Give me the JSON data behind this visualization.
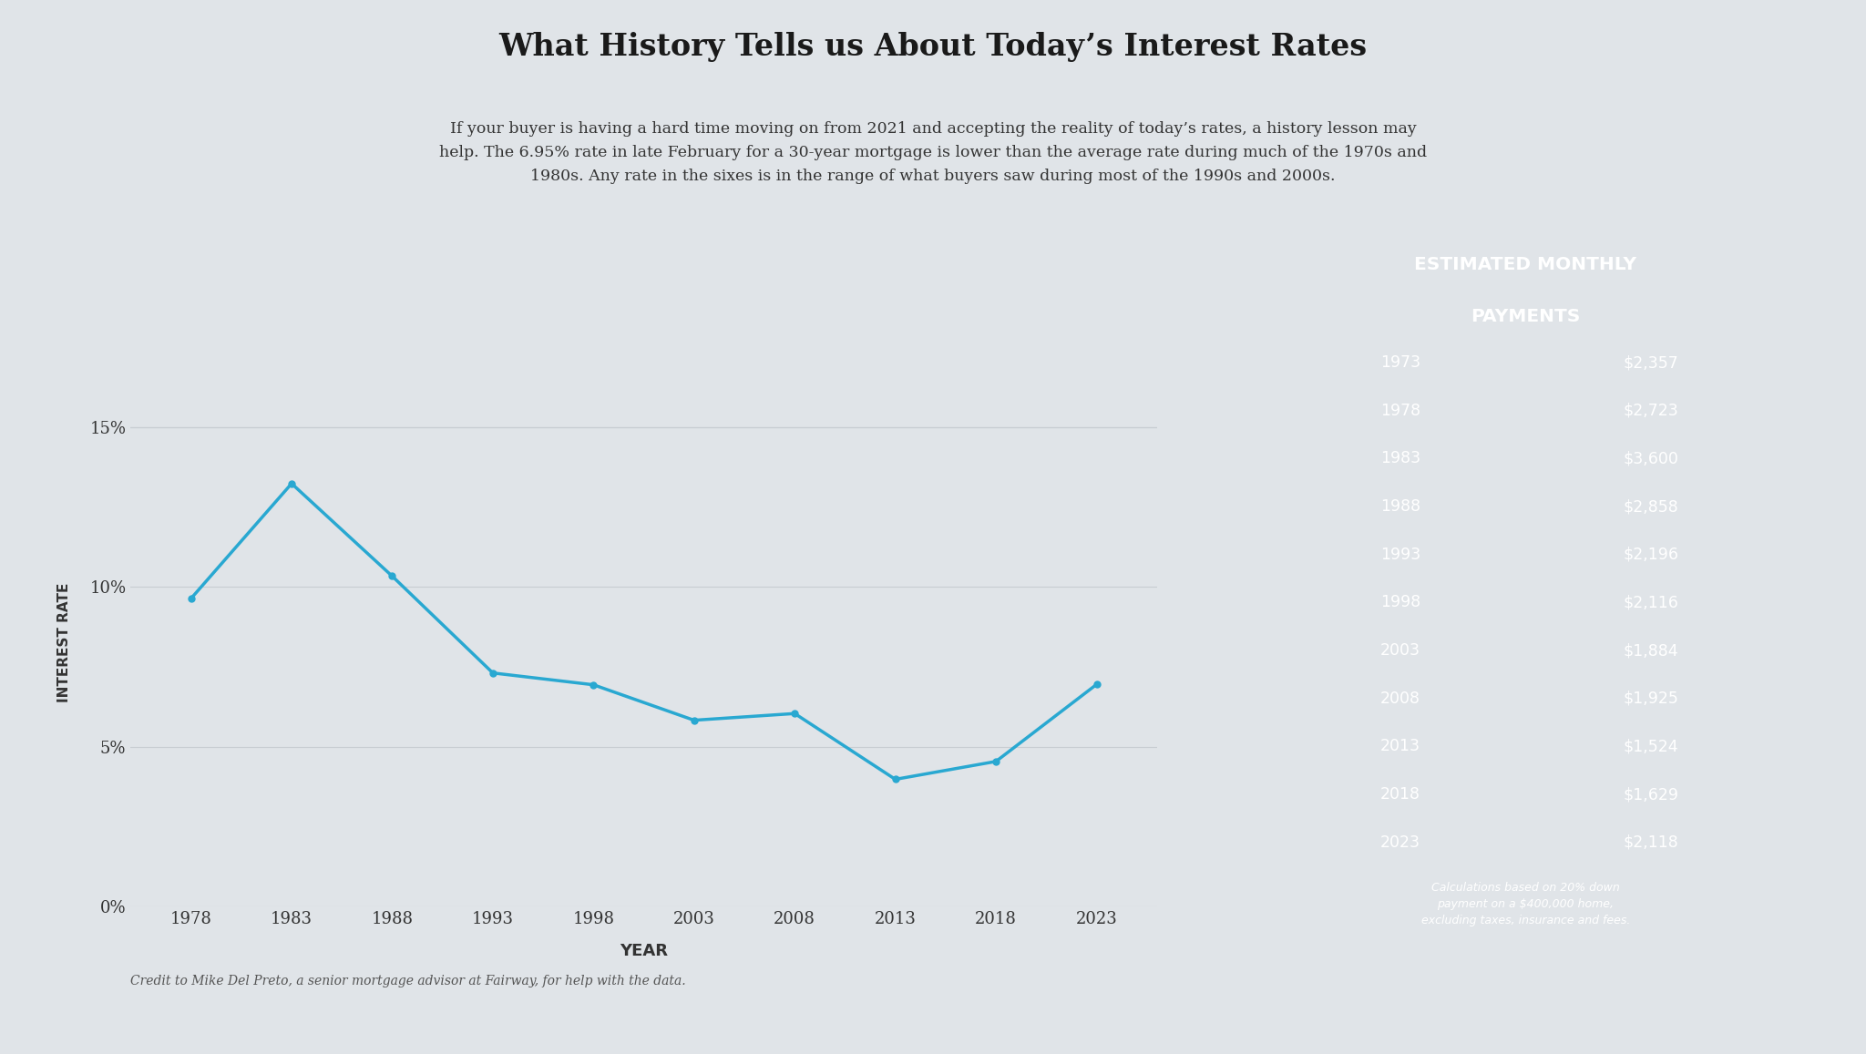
{
  "title": "What History Tells us About Today’s Interest Rates",
  "subtitle_lines": [
    "If your buyer is having a hard time moving on from 2021 and accepting the reality of today’s rates, a history lesson may",
    "help. The 6.95% rate in late February for a 30-year mortgage is lower than the average rate during much of the 1970s and",
    "1980s. Any rate in the sixes is in the range of what buyers saw during most of the 1990s and 2000s."
  ],
  "credit": "Credit to Mike Del Preto, a senior mortgage advisor at Fairway, for help with the data.",
  "years": [
    1978,
    1983,
    1988,
    1993,
    1998,
    2003,
    2008,
    2013,
    2018,
    2023
  ],
  "rates": [
    9.64,
    13.24,
    10.34,
    7.31,
    6.94,
    5.83,
    6.04,
    3.98,
    4.54,
    6.95
  ],
  "yticks": [
    0,
    5,
    10,
    15
  ],
  "ytick_labels": [
    "0%",
    "5%",
    "10%",
    "15%"
  ],
  "xlabel": "YEAR",
  "ylabel": "INTEREST RATE",
  "line_color": "#29A8D1",
  "background_color": "#E0E4E8",
  "chart_box_color": "#1C8CB8",
  "table_header_line1": "ESTIMATED MONTHLY",
  "table_header_line2": "PAYMENTS",
  "table_years": [
    "1973",
    "1978",
    "1983",
    "1988",
    "1993",
    "1998",
    "2003",
    "2008",
    "2013",
    "2018",
    "2023"
  ],
  "table_payments": [
    "$2,357",
    "$2,723",
    "$3,600",
    "$2,858",
    "$2,196",
    "$2,116",
    "$1,884",
    "$1,925",
    "$1,524",
    "$1,629",
    "$2,118"
  ],
  "table_note": "Calculations based on 20% down\npayment on a $400,000 home,\nexcluding taxes, insurance and fees.",
  "grid_color": "#C8CDD2"
}
